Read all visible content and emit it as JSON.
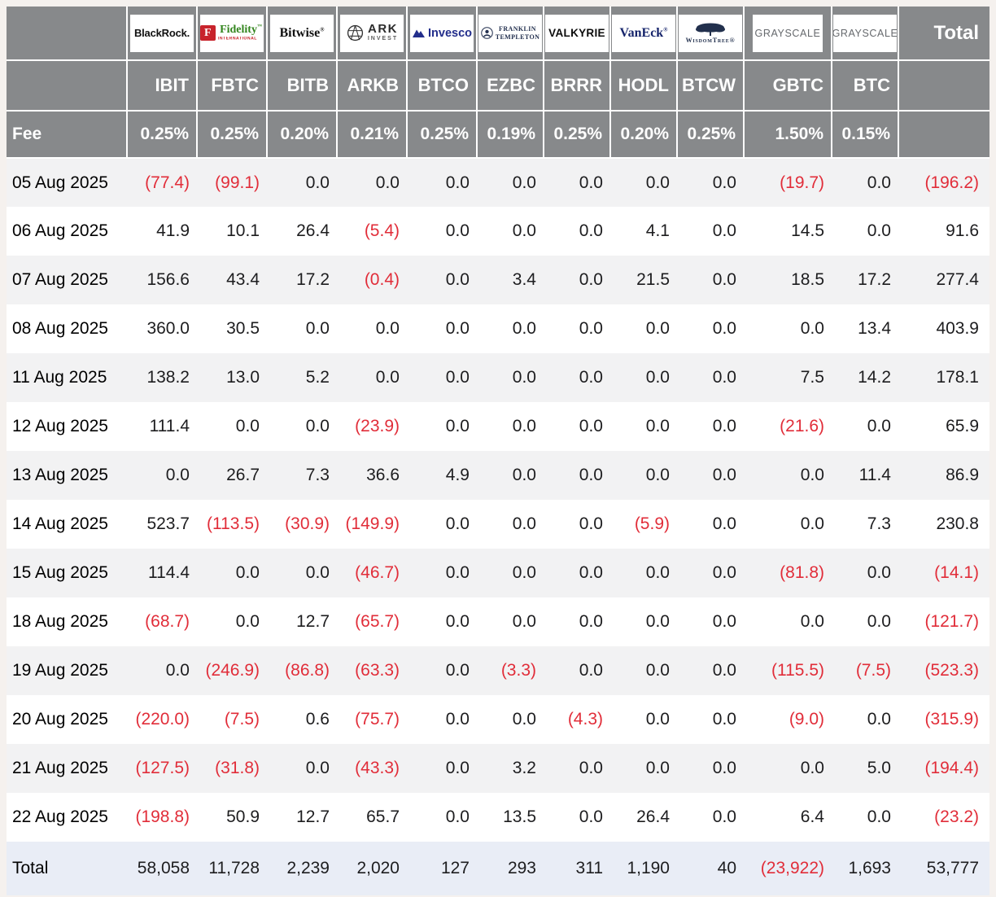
{
  "colors": {
    "header_bg": "#87898b",
    "row_alt_bg": "#f2f2f3",
    "total_row_bg": "#e9edf6",
    "negative_value": "#e12d39"
  },
  "table": {
    "fee_label": "Fee",
    "total_label": "Total",
    "providers": [
      {
        "id": "blackrock",
        "logo_text": "BlackRock.",
        "ticker": "IBIT",
        "fee": "0.25%"
      },
      {
        "id": "fidelity",
        "logo_text": "Fidelity",
        "logo_sub": "INTERNATIONAL",
        "ticker": "FBTC",
        "fee": "0.25%"
      },
      {
        "id": "bitwise",
        "logo_text": "Bitwise",
        "ticker": "BITB",
        "fee": "0.20%"
      },
      {
        "id": "ark",
        "logo_text": "ARK",
        "logo_sub": "INVEST",
        "ticker": "ARKB",
        "fee": "0.21%"
      },
      {
        "id": "invesco",
        "logo_text": "Invesco",
        "ticker": "BTCO",
        "fee": "0.25%"
      },
      {
        "id": "franklin",
        "logo_text": "FRANKLIN",
        "logo_sub": "TEMPLETON",
        "ticker": "EZBC",
        "fee": "0.19%"
      },
      {
        "id": "valkyrie",
        "logo_text": "VALKYRIE",
        "ticker": "BRRR",
        "fee": "0.25%"
      },
      {
        "id": "vaneck",
        "logo_text": "VanEck",
        "ticker": "HODL",
        "fee": "0.20%"
      },
      {
        "id": "wisdomtree",
        "logo_text": "WisdomTree®",
        "ticker": "BTCW",
        "fee": "0.25%"
      },
      {
        "id": "grayscale",
        "logo_text": "GRAYSCALE",
        "ticker": "GBTC",
        "fee": "1.50%"
      },
      {
        "id": "grayscale2",
        "logo_text": "GRAYSCALE",
        "ticker": "BTC",
        "fee": "0.15%"
      }
    ],
    "rows": [
      {
        "date": "05 Aug 2025",
        "values": [
          "(77.4)",
          "(99.1)",
          "0.0",
          "0.0",
          "0.0",
          "0.0",
          "0.0",
          "0.0",
          "0.0",
          "(19.7)",
          "0.0"
        ],
        "total": "(196.2)"
      },
      {
        "date": "06 Aug 2025",
        "values": [
          "41.9",
          "10.1",
          "26.4",
          "(5.4)",
          "0.0",
          "0.0",
          "0.0",
          "4.1",
          "0.0",
          "14.5",
          "0.0"
        ],
        "total": "91.6"
      },
      {
        "date": "07 Aug 2025",
        "values": [
          "156.6",
          "43.4",
          "17.2",
          "(0.4)",
          "0.0",
          "3.4",
          "0.0",
          "21.5",
          "0.0",
          "18.5",
          "17.2"
        ],
        "total": "277.4"
      },
      {
        "date": "08 Aug 2025",
        "values": [
          "360.0",
          "30.5",
          "0.0",
          "0.0",
          "0.0",
          "0.0",
          "0.0",
          "0.0",
          "0.0",
          "0.0",
          "13.4"
        ],
        "total": "403.9"
      },
      {
        "date": "11 Aug 2025",
        "values": [
          "138.2",
          "13.0",
          "5.2",
          "0.0",
          "0.0",
          "0.0",
          "0.0",
          "0.0",
          "0.0",
          "7.5",
          "14.2"
        ],
        "total": "178.1"
      },
      {
        "date": "12 Aug 2025",
        "values": [
          "111.4",
          "0.0",
          "0.0",
          "(23.9)",
          "0.0",
          "0.0",
          "0.0",
          "0.0",
          "0.0",
          "(21.6)",
          "0.0"
        ],
        "total": "65.9"
      },
      {
        "date": "13 Aug 2025",
        "values": [
          "0.0",
          "26.7",
          "7.3",
          "36.6",
          "4.9",
          "0.0",
          "0.0",
          "0.0",
          "0.0",
          "0.0",
          "11.4"
        ],
        "total": "86.9"
      },
      {
        "date": "14 Aug 2025",
        "values": [
          "523.7",
          "(113.5)",
          "(30.9)",
          "(149.9)",
          "0.0",
          "0.0",
          "0.0",
          "(5.9)",
          "0.0",
          "0.0",
          "7.3"
        ],
        "total": "230.8"
      },
      {
        "date": "15 Aug 2025",
        "values": [
          "114.4",
          "0.0",
          "0.0",
          "(46.7)",
          "0.0",
          "0.0",
          "0.0",
          "0.0",
          "0.0",
          "(81.8)",
          "0.0"
        ],
        "total": "(14.1)"
      },
      {
        "date": "18 Aug 2025",
        "values": [
          "(68.7)",
          "0.0",
          "12.7",
          "(65.7)",
          "0.0",
          "0.0",
          "0.0",
          "0.0",
          "0.0",
          "0.0",
          "0.0"
        ],
        "total": "(121.7)"
      },
      {
        "date": "19 Aug 2025",
        "values": [
          "0.0",
          "(246.9)",
          "(86.8)",
          "(63.3)",
          "0.0",
          "(3.3)",
          "0.0",
          "0.0",
          "0.0",
          "(115.5)",
          "(7.5)"
        ],
        "total": "(523.3)"
      },
      {
        "date": "20 Aug 2025",
        "values": [
          "(220.0)",
          "(7.5)",
          "0.6",
          "(75.7)",
          "0.0",
          "0.0",
          "(4.3)",
          "0.0",
          "0.0",
          "(9.0)",
          "0.0"
        ],
        "total": "(315.9)"
      },
      {
        "date": "21 Aug 2025",
        "values": [
          "(127.5)",
          "(31.8)",
          "0.0",
          "(43.3)",
          "0.0",
          "3.2",
          "0.0",
          "0.0",
          "0.0",
          "0.0",
          "5.0"
        ],
        "total": "(194.4)"
      },
      {
        "date": "22 Aug 2025",
        "values": [
          "(198.8)",
          "50.9",
          "12.7",
          "65.7",
          "0.0",
          "13.5",
          "0.0",
          "26.4",
          "0.0",
          "6.4",
          "0.0"
        ],
        "total": "(23.2)"
      }
    ],
    "total_row": {
      "label": "Total",
      "values": [
        "58,058",
        "11,728",
        "2,239",
        "2,020",
        "127",
        "293",
        "311",
        "1,190",
        "40",
        "(23,922)",
        "1,693"
      ],
      "total": "53,777"
    }
  }
}
